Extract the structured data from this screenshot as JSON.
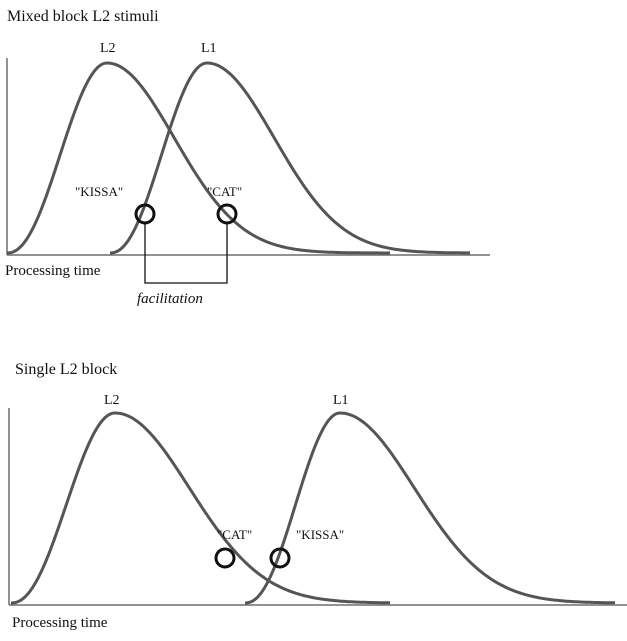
{
  "panels": [
    {
      "title": "Mixed block L2 stimuli",
      "x_label": "Processing time",
      "curves": [
        {
          "label": "L2"
        },
        {
          "label": "L1"
        }
      ],
      "markers": [
        {
          "label": "\"KISSA\""
        },
        {
          "label": "\"CAT\""
        }
      ],
      "annotation": "facilitation"
    },
    {
      "title": "Single L2 block",
      "x_label": "Processing time",
      "curves": [
        {
          "label": "L2"
        },
        {
          "label": "L1"
        }
      ],
      "markers": [
        {
          "label": "\"CAT\""
        },
        {
          "label": "\"KISSA\""
        }
      ]
    }
  ]
}
